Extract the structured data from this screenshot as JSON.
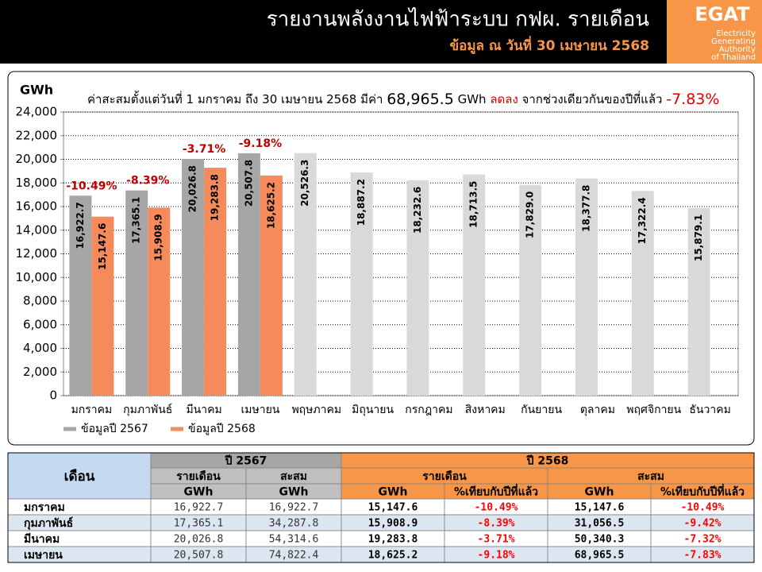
{
  "header": {
    "title": "รายงานพลังงานไฟฟ้าระบบ กฟผ. รายเดือน",
    "subtitle": "ข้อมูล ณ วันที่ 30 เมษายน 2568",
    "logo": {
      "name": "EGAT",
      "lines": [
        "Electricity",
        "Generating",
        "Authority",
        "of Thailand"
      ]
    }
  },
  "chart_data": {
    "type": "bar",
    "y_label": "GWh",
    "summary": {
      "prefix": "ค่าสะสมตั้งแต่วันที่ 1 มกราคม ถึง 30 เมษายน 2568 มีค่า ",
      "total": "68,965.5",
      "unit": " GWh ",
      "trend": "ลดลง",
      "comparison": " จากช่วงเดียวกันของปีที่แล้ว ",
      "change": "-7.83%"
    },
    "categories": [
      "มกราคม",
      "กุมภาพันธ์",
      "มีนาคม",
      "เมษายน",
      "พฤษภาคม",
      "มิถุนายน",
      "กรกฎาคม",
      "สิงหาคม",
      "กันยายน",
      "ตุลาคม",
      "พฤศจิกายน",
      "ธันวาคม"
    ],
    "series": [
      {
        "name": "ข้อมูลปี 2567",
        "color": "#a6a6a6",
        "colors": [
          "#a6a6a6",
          "#a6a6a6",
          "#a6a6a6",
          "#a6a6a6",
          "#d9d9d9",
          "#d9d9d9",
          "#d9d9d9",
          "#d9d9d9",
          "#d9d9d9",
          "#d9d9d9",
          "#d9d9d9",
          "#d9d9d9"
        ],
        "values": [
          16922.7,
          17365.1,
          20026.8,
          20507.8,
          20526.3,
          18887.2,
          18232.6,
          18713.5,
          17829.0,
          18377.8,
          17322.4,
          15879.1
        ],
        "value_labels": [
          "16,922.7",
          "17,365.1",
          "20,026.8",
          "20,507.8",
          "20,526.3",
          "18,887.2",
          "18,232.6",
          "18,713.5",
          "17,829.0",
          "18,377.8",
          "17,322.4",
          "15,879.1"
        ]
      },
      {
        "name": "ข้อมูลปี 2568",
        "color": "#f58b5a",
        "values": [
          15147.6,
          15908.9,
          19283.8,
          18625.2,
          null,
          null,
          null,
          null,
          null,
          null,
          null,
          null
        ],
        "value_labels": [
          "15,147.6",
          "15,908.9",
          "19,283.8",
          "18,625.2",
          null,
          null,
          null,
          null,
          null,
          null,
          null,
          null
        ]
      }
    ],
    "change_labels": [
      "-10.49%",
      "-8.39%",
      "-3.71%",
      "-9.18%"
    ],
    "ylim": [
      0,
      24000
    ],
    "yticks": [
      0,
      {
        "value": 2000,
        "label": "2,000"
      },
      {
        "value": 4000,
        "label": "4,000"
      },
      {
        "value": 6000,
        "label": "6,000"
      },
      {
        "value": 8000,
        "label": "8,000"
      },
      {
        "value": 10000,
        "label": "10,000"
      },
      {
        "value": 12000,
        "label": "12,000"
      },
      {
        "value": 14000,
        "label": "14,000"
      },
      {
        "value": 16000,
        "label": "16,000"
      },
      {
        "value": 18000,
        "label": "18,000"
      },
      {
        "value": 20000,
        "label": "20,000"
      },
      {
        "value": 22000,
        "label": "22,000"
      },
      {
        "value": 24000,
        "label": "24,000"
      }
    ],
    "grid": true,
    "legend": "bottom-left"
  },
  "table": {
    "month_header": "เดือน",
    "groups": [
      "ปี 2567",
      "ปี 2568"
    ],
    "subgroups": [
      "รายเดือน",
      "สะสม",
      "รายเดือน",
      "สะสม"
    ],
    "units": [
      "GWh",
      "GWh",
      "GWh",
      "%เทียบกับปีที่แล้ว",
      "GWh",
      "%เทียบกับปีที่แล้ว"
    ],
    "rows": [
      [
        "มกราคม",
        "16,922.7",
        "16,922.7",
        "15,147.6",
        "-10.49%",
        "15,147.6",
        "-10.49%"
      ],
      [
        "กุมภาพันธ์",
        "17,365.1",
        "34,287.8",
        "15,908.9",
        "-8.39%",
        "31,056.5",
        "-9.42%"
      ],
      [
        "มีนาคม",
        "20,026.8",
        "54,314.6",
        "19,283.8",
        "-3.71%",
        "50,340.3",
        "-7.32%"
      ],
      [
        "เมษายน",
        "20,507.8",
        "74,822.4",
        "18,625.2",
        "-9.18%",
        "68,965.5",
        "-7.83%"
      ]
    ]
  }
}
